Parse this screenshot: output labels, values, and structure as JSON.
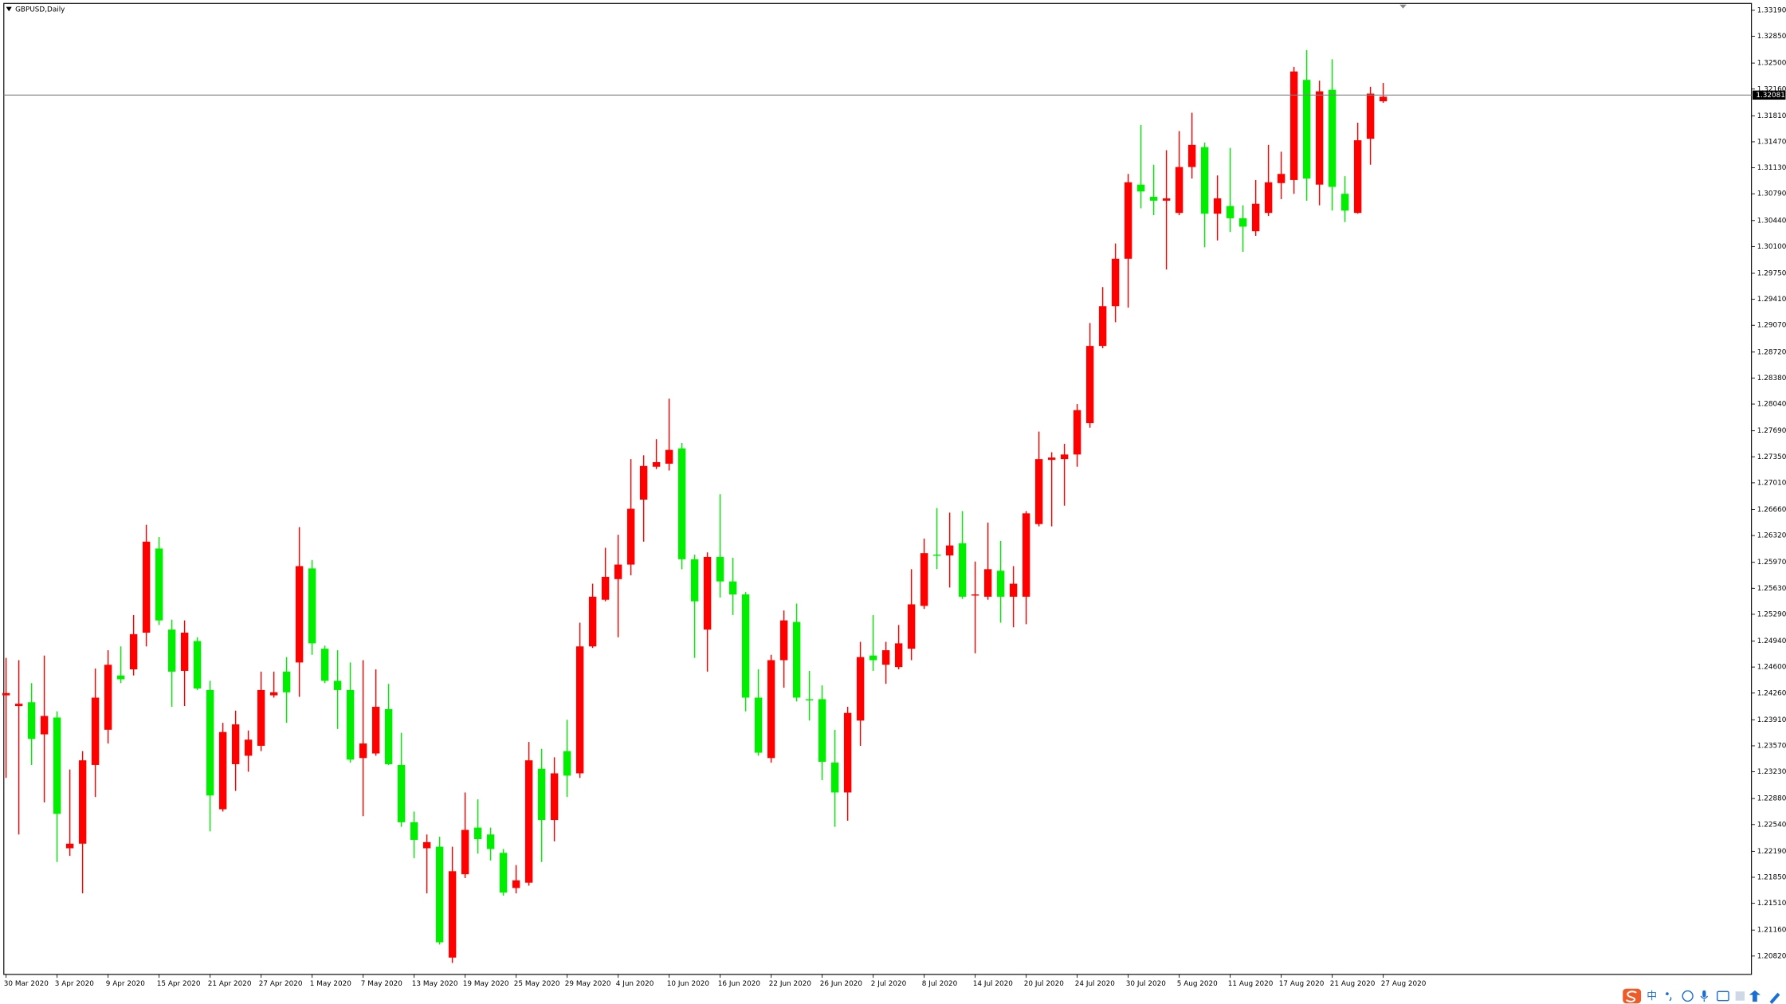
{
  "chart_data": {
    "type": "candlestick",
    "title": "GBPUSD,Daily",
    "categories": [
      "30 Mar 2020",
      null,
      null,
      null,
      "3 Apr 2020",
      null,
      null,
      null,
      "9 Apr 2020",
      null,
      null,
      null,
      "15 Apr 2020",
      null,
      null,
      null,
      "21 Apr 2020",
      null,
      null,
      null,
      "27 Apr 2020",
      null,
      null,
      null,
      "1 May 2020",
      null,
      null,
      null,
      "7 May 2020",
      null,
      null,
      null,
      "13 May 2020",
      null,
      null,
      null,
      "19 May 2020",
      null,
      null,
      null,
      "25 May 2020",
      null,
      null,
      null,
      "29 May 2020",
      null,
      null,
      null,
      "4 Jun 2020",
      null,
      null,
      null,
      "10 Jun 2020",
      null,
      null,
      null,
      "16 Jun 2020",
      null,
      null,
      null,
      "22 Jun 2020",
      null,
      null,
      null,
      "26 Jun 2020",
      null,
      null,
      null,
      "2 Jul 2020",
      null,
      null,
      null,
      "8 Jul 2020",
      null,
      null,
      null,
      "14 Jul 2020",
      null,
      null,
      null,
      "20 Jul 2020",
      null,
      null,
      null,
      "24 Jul 2020",
      null,
      null,
      null,
      "30 Jul 2020",
      null,
      null,
      null,
      "5 Aug 2020",
      null,
      null,
      null,
      "11 Aug 2020",
      null,
      null,
      null,
      "17 Aug 2020",
      null,
      null,
      null,
      "21 Aug 2020",
      null,
      null,
      null,
      "27 Aug 2020"
    ],
    "open": [
      1.2423,
      1.2409,
      1.2414,
      1.2372,
      1.2394,
      1.2223,
      1.2229,
      1.2332,
      1.2378,
      1.2449,
      1.2457,
      1.2505,
      1.2615,
      1.2509,
      1.2455,
      1.2494,
      1.243,
      1.2274,
      1.2333,
      1.2344,
      1.2357,
      1.2423,
      1.2454,
      1.2466,
      1.2589,
      1.2484,
      1.2442,
      1.243,
      1.2341,
      1.2347,
      1.2405,
      1.2332,
      1.2257,
      1.2223,
      1.2225,
      1.208,
      1.2189,
      1.225,
      1.2241,
      1.2217,
      1.2171,
      1.2178,
      1.2327,
      1.226,
      1.235,
      1.2321,
      1.2487,
      1.2548,
      1.2575,
      1.2594,
      1.2679,
      1.2722,
      1.2726,
      1.2746,
      1.2601,
      1.2509,
      1.2604,
      1.2572,
      1.2555,
      1.242,
      1.2341,
      1.2469,
      1.2519,
      1.2418,
      1.2418,
      1.2335,
      1.2296,
      1.239,
      1.2475,
      1.2463,
      1.246,
      1.2484,
      1.254,
      1.2607,
      1.2606,
      1.2622,
      1.2554,
      1.2552,
      1.2586,
      1.2552,
      1.2552,
      1.2647,
      1.2731,
      1.2732,
      1.2738,
      1.2779,
      1.288,
      1.2932,
      1.2994,
      1.3091,
      1.3075,
      1.307,
      1.3054,
      1.3114,
      1.314,
      1.3053,
      1.3063,
      1.3047,
      1.303,
      1.3054,
      1.3093,
      1.3097,
      1.3228,
      1.3091,
      1.3215,
      1.3079,
      1.3054,
      1.3151,
      1.32
    ],
    "high": [
      1.2472,
      1.2469,
      1.2439,
      1.2475,
      1.2402,
      1.2326,
      1.235,
      1.2458,
      1.2482,
      1.2487,
      1.2528,
      1.2646,
      1.263,
      1.2522,
      1.2521,
      1.2499,
      1.2442,
      1.2387,
      1.2403,
      1.2377,
      1.2454,
      1.2454,
      1.2473,
      1.2643,
      1.26,
      1.2488,
      1.2482,
      1.2466,
      1.2469,
      1.2457,
      1.2438,
      1.2374,
      1.2271,
      1.2241,
      1.2238,
      1.2225,
      1.2296,
      1.2287,
      1.225,
      1.2222,
      1.2201,
      1.2362,
      1.2353,
      1.2342,
      1.2391,
      1.2518,
      1.2569,
      1.2616,
      1.2633,
      1.2732,
      1.2737,
      1.2758,
      1.2811,
      1.2753,
      1.2607,
      1.261,
      1.2686,
      1.2603,
      1.2558,
      1.2457,
      1.2476,
      1.2534,
      1.2543,
      1.2455,
      1.2436,
      1.2378,
      1.2408,
      1.2493,
      1.2528,
      1.2493,
      1.2515,
      1.2588,
      1.2628,
      1.2668,
      1.2662,
      1.2664,
      1.2598,
      1.2649,
      1.2625,
      1.2592,
      1.2664,
      1.2768,
      1.2741,
      1.2752,
      1.2804,
      1.291,
      1.2957,
      1.3014,
      1.3105,
      1.3169,
      1.3117,
      1.3136,
      1.3161,
      1.3185,
      1.3146,
      1.3103,
      1.3139,
      1.3064,
      1.3097,
      1.3143,
      1.3134,
      1.3245,
      1.3267,
      1.3227,
      1.3255,
      1.3102,
      1.3172,
      1.3219,
      1.3224
    ],
    "low": [
      1.2315,
      1.2241,
      1.2332,
      1.2283,
      1.2205,
      1.2213,
      1.2164,
      1.229,
      1.236,
      1.2439,
      1.2449,
      1.2487,
      1.2515,
      1.2408,
      1.2409,
      1.243,
      1.2245,
      1.2271,
      1.2298,
      1.2323,
      1.235,
      1.242,
      1.2387,
      1.2421,
      1.2476,
      1.2439,
      1.2379,
      1.2335,
      1.2265,
      1.2344,
      1.2332,
      1.2251,
      1.221,
      1.2164,
      1.2097,
      1.2073,
      1.2184,
      1.2216,
      1.2207,
      1.2161,
      1.2164,
      1.2174,
      1.2205,
      1.2232,
      1.229,
      1.2315,
      1.2485,
      1.2546,
      1.2499,
      1.258,
      1.2624,
      1.2719,
      1.2717,
      1.2588,
      1.2472,
      1.2454,
      1.2551,
      1.2528,
      1.2402,
      1.2344,
      1.2335,
      1.2433,
      1.2415,
      1.239,
      1.2312,
      1.2251,
      1.2259,
      1.2357,
      1.2455,
      1.2438,
      1.2457,
      1.2469,
      1.2536,
      1.2588,
      1.2564,
      1.2549,
      1.2478,
      1.2548,
      1.2518,
      1.2512,
      1.2516,
      1.2644,
      1.2644,
      1.2671,
      1.2722,
      1.2773,
      1.2877,
      1.2911,
      1.293,
      1.306,
      1.3051,
      1.298,
      1.3051,
      1.3099,
      1.3009,
      1.3018,
      1.3029,
      1.3003,
      1.3024,
      1.305,
      1.3072,
      1.3079,
      1.307,
      1.3064,
      1.3057,
      1.3042,
      1.3053,
      1.3117,
      1.3198
    ],
    "close": [
      1.2426,
      1.2412,
      1.2366,
      1.2396,
      1.2268,
      1.2229,
      1.2338,
      1.242,
      1.2463,
      1.2444,
      1.2503,
      1.2624,
      1.2521,
      1.2454,
      1.2505,
      1.2432,
      1.2292,
      1.2375,
      1.2385,
      1.2365,
      1.243,
      1.2427,
      1.2427,
      1.2592,
      1.2491,
      1.2442,
      1.243,
      1.2339,
      1.236,
      1.2408,
      1.2333,
      1.2257,
      1.2234,
      1.2231,
      1.21,
      1.2193,
      1.2247,
      1.2235,
      1.2222,
      1.2165,
      1.2181,
      1.2338,
      1.226,
      1.2321,
      1.2318,
      1.2487,
      1.2552,
      1.2578,
      1.2594,
      1.2667,
      1.2723,
      1.2728,
      1.2744,
      1.2601,
      1.2546,
      1.2604,
      1.2572,
      1.2555,
      1.242,
      1.2348,
      1.2469,
      1.2521,
      1.242,
      1.2417,
      1.2336,
      1.2296,
      1.24,
      1.2473,
      1.2469,
      1.2482,
      1.2491,
      1.2542,
      1.2609,
      1.2606,
      1.2619,
      1.2552,
      1.2555,
      1.2588,
      1.2552,
      1.2569,
      1.2661,
      1.2732,
      1.2734,
      1.2738,
      1.2796,
      1.288,
      1.2932,
      1.2994,
      1.3094,
      1.3082,
      1.307,
      1.3073,
      1.3114,
      1.3143,
      1.3053,
      1.3073,
      1.3047,
      1.3036,
      1.3066,
      1.3094,
      1.3105,
      1.3239,
      1.3099,
      1.3213,
      1.3088,
      1.3057,
      1.3149,
      1.321,
      1.3206
    ],
    "up_color": "#ff0000",
    "down_color": "#00ee00",
    "ylim": [
      1.2058,
      1.3328
    ],
    "yticks": [
      {
        "value": 1.3319,
        "label": "1.33190"
      },
      {
        "value": 1.3285,
        "label": "1.32850"
      },
      {
        "value": 1.325,
        "label": "1.32500"
      },
      {
        "value": 1.3216,
        "label": "1.32160"
      },
      {
        "value": 1.3181,
        "label": "1.31810"
      },
      {
        "value": 1.3147,
        "label": "1.31470"
      },
      {
        "value": 1.3113,
        "label": "1.31130"
      },
      {
        "value": 1.3079,
        "label": "1.30790"
      },
      {
        "value": 1.3044,
        "label": "1.30440"
      },
      {
        "value": 1.301,
        "label": "1.30100"
      },
      {
        "value": 1.2975,
        "label": "1.29750"
      },
      {
        "value": 1.2941,
        "label": "1.29410"
      },
      {
        "value": 1.2907,
        "label": "1.29070"
      },
      {
        "value": 1.2872,
        "label": "1.28720"
      },
      {
        "value": 1.2838,
        "label": "1.28380"
      },
      {
        "value": 1.2804,
        "label": "1.28040"
      },
      {
        "value": 1.2769,
        "label": "1.27690"
      },
      {
        "value": 1.2735,
        "label": "1.27350"
      },
      {
        "value": 1.2701,
        "label": "1.27010"
      },
      {
        "value": 1.2666,
        "label": "1.26660"
      },
      {
        "value": 1.2632,
        "label": "1.26320"
      },
      {
        "value": 1.2597,
        "label": "1.25970"
      },
      {
        "value": 1.2563,
        "label": "1.25630"
      },
      {
        "value": 1.2529,
        "label": "1.25290"
      },
      {
        "value": 1.2494,
        "label": "1.24940"
      },
      {
        "value": 1.246,
        "label": "1.24600"
      },
      {
        "value": 1.2426,
        "label": "1.24260"
      },
      {
        "value": 1.2391,
        "label": "1.23910"
      },
      {
        "value": 1.2357,
        "label": "1.23570"
      },
      {
        "value": 1.2323,
        "label": "1.23230"
      },
      {
        "value": 1.2288,
        "label": "1.22880"
      },
      {
        "value": 1.2254,
        "label": "1.22540"
      },
      {
        "value": 1.2219,
        "label": "1.22190"
      },
      {
        "value": 1.2185,
        "label": "1.21850"
      },
      {
        "value": 1.2151,
        "label": "1.21510"
      },
      {
        "value": 1.2116,
        "label": "1.21160"
      },
      {
        "value": 1.2082,
        "label": "1.20820"
      }
    ],
    "current_price": {
      "value": 1.32081,
      "label": "1.32081"
    },
    "grid": false
  },
  "taskbar": {
    "ime_mode": "中"
  }
}
